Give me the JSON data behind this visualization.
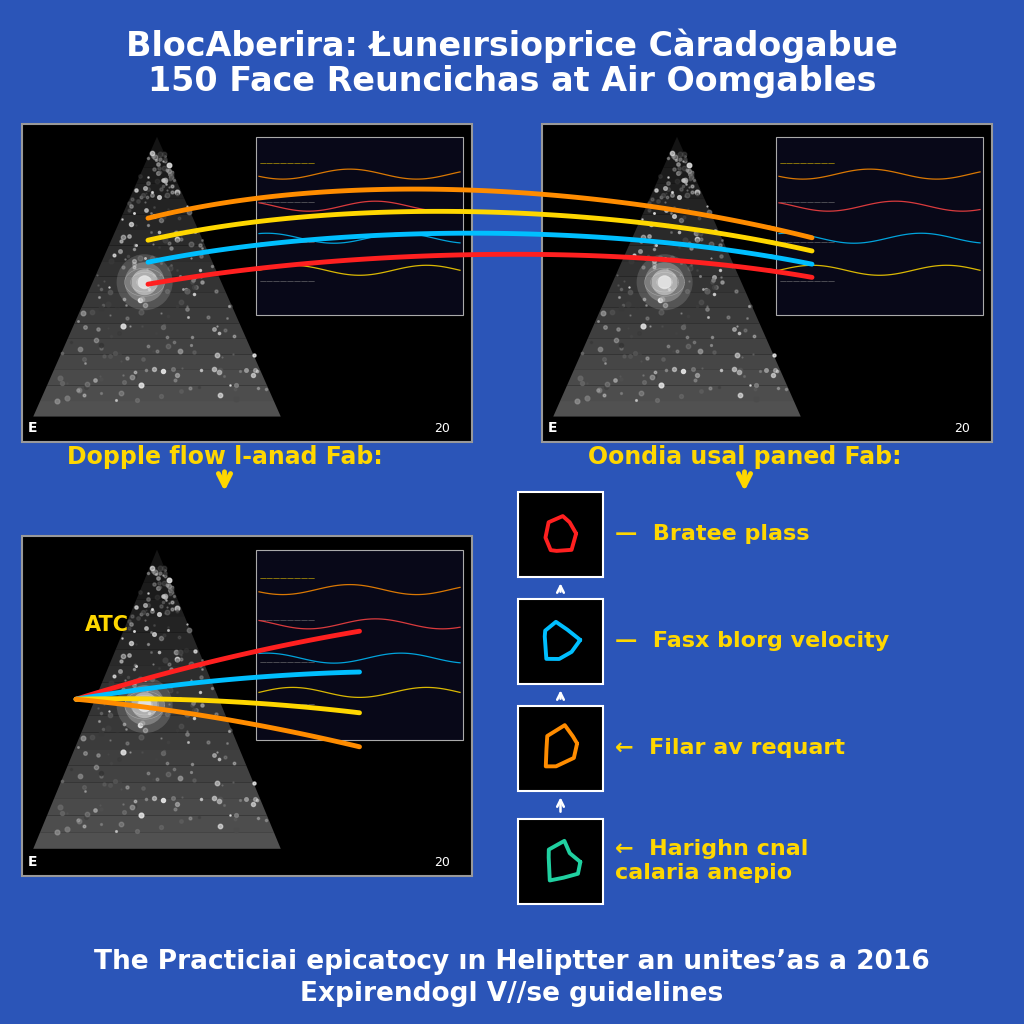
{
  "background_color": "#2B55B8",
  "title_line1": "BlocAberira: Łuneırsioprice Càradogabue",
  "title_line2": "150 Face Reuncichas at Air Oomgables",
  "footer_line1": "The Practiciai epicatocy ın Heliptter an unites’as a 2016",
  "footer_line2": "Expirendogl V//se guidelines",
  "top_left_label": "Dopple flow l-anad Fab:",
  "top_right_label": "Oondia usal paned Fab:",
  "arrow_color": "#FFD700",
  "legend_colors": [
    "#FF2020",
    "#00BFFF",
    "#FF8C00",
    "#20D0A0"
  ],
  "legend_texts": [
    "Bratee plass",
    "Fasx blorg velocity",
    "Filar av requart",
    "Harighn cnal\ncalaria anepio"
  ],
  "legend_arrows": [
    "—",
    "—",
    "←",
    "←"
  ],
  "line_colors_top": [
    "#FF2020",
    "#00BFFF",
    "#FFD700",
    "#FF8C00"
  ],
  "line_colors_bottom": [
    "#FF2020",
    "#00BFFF",
    "#FFD700",
    "#FF8C00"
  ],
  "title_fontsize": 24,
  "label_fontsize": 17,
  "footer_fontsize": 19,
  "legend_fontsize": 16
}
